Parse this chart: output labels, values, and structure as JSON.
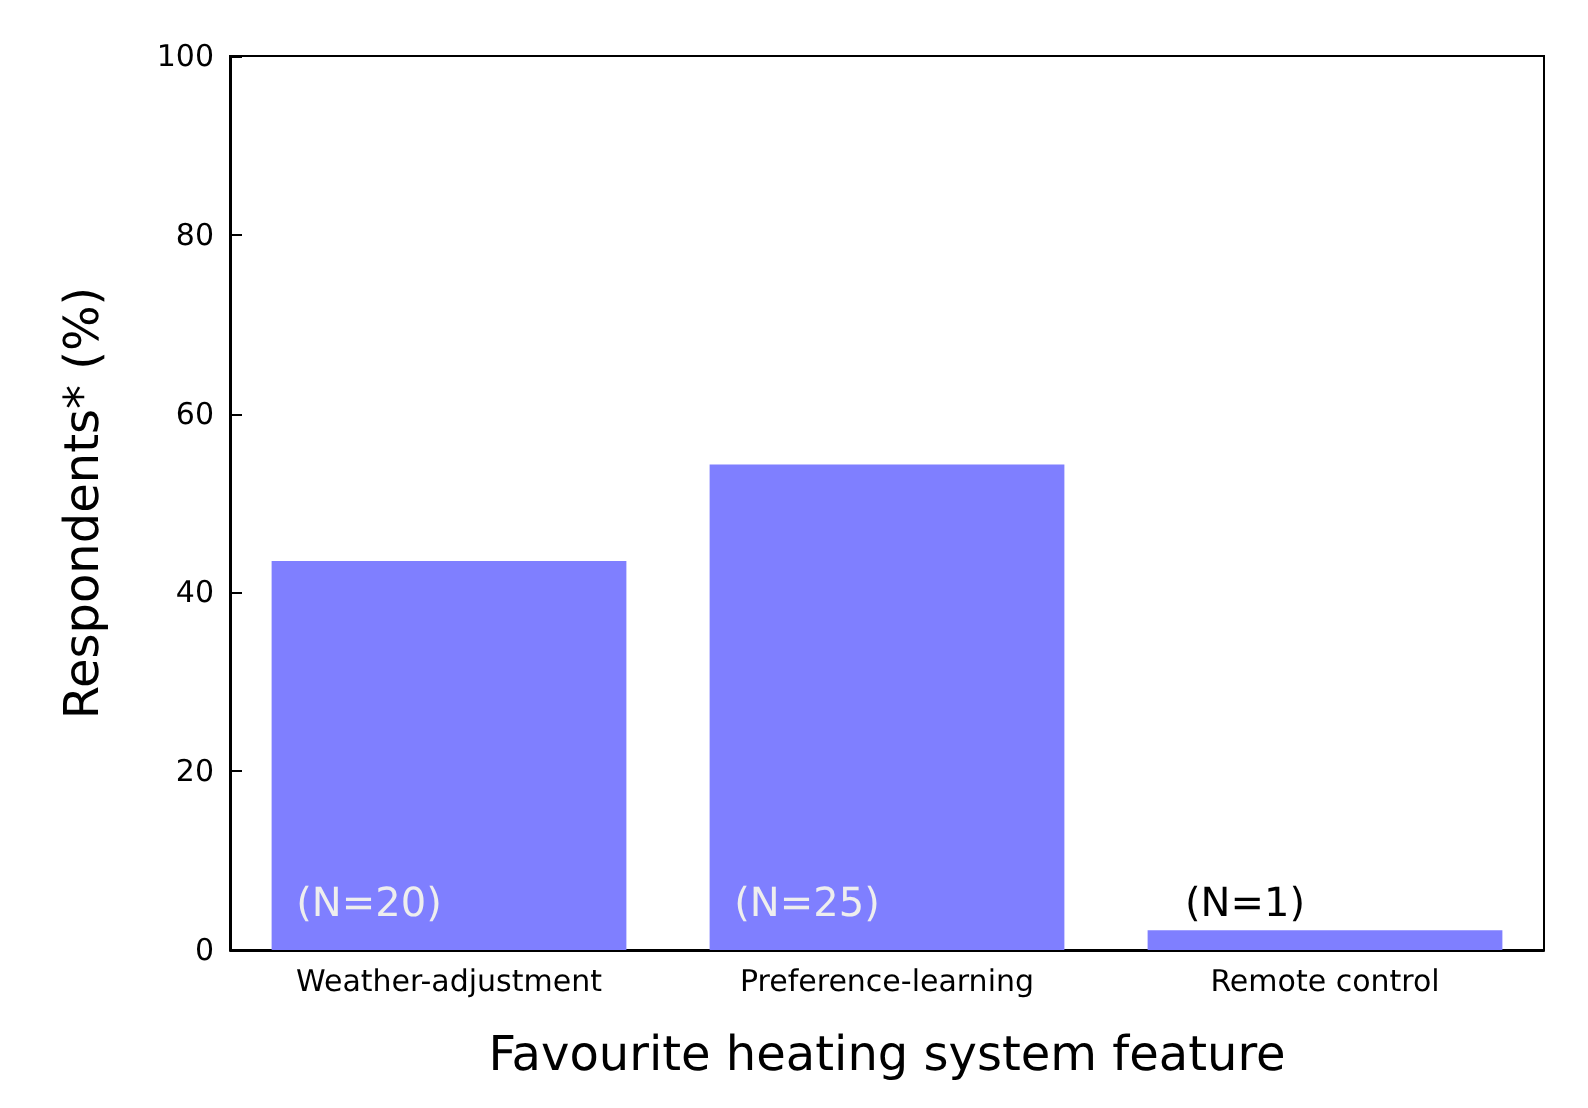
{
  "chart_data": {
    "type": "bar",
    "xlabel": "Favourite heating system feature",
    "ylabel": "Respondents* (%)",
    "categories": [
      "Weather-adjustment",
      "Preference-learning",
      "Remote control"
    ],
    "values": [
      43.5,
      54.3,
      2.2
    ],
    "color": "#7f7fff",
    "ylim": [
      0,
      100
    ],
    "yticks": [
      0,
      20,
      40,
      60,
      80,
      100
    ],
    "grid": false,
    "annotations": [
      "(N=20)",
      "(N=25)",
      "(N=1)"
    ]
  }
}
